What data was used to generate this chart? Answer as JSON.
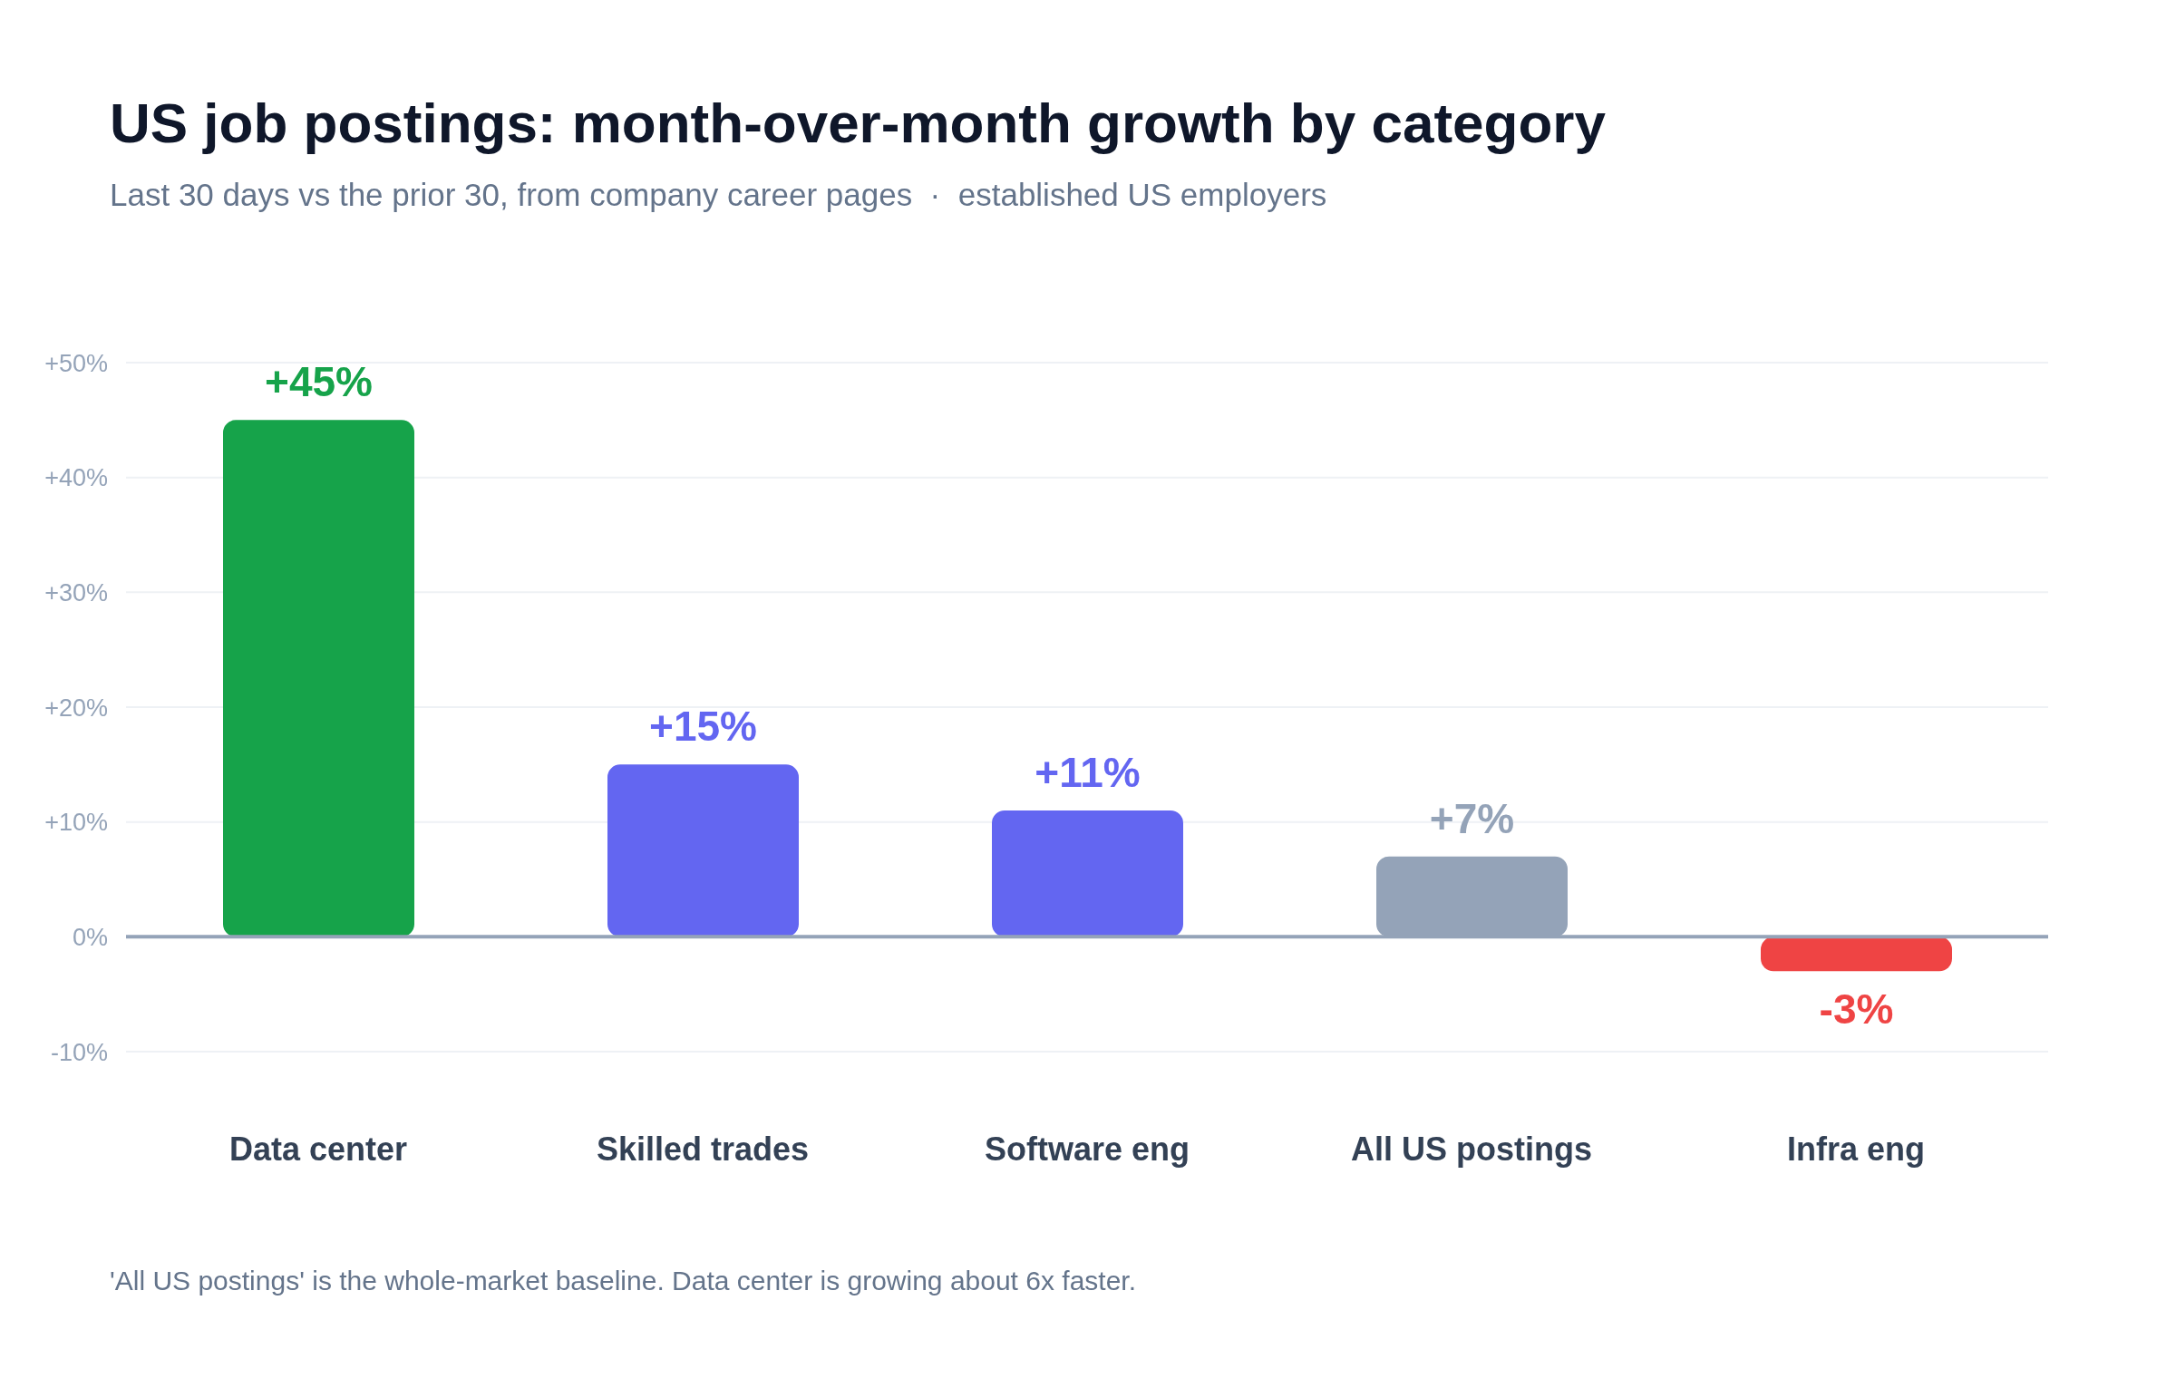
{
  "chart_data": {
    "type": "bar",
    "title": "US job postings: month-over-month growth by category",
    "subtitle": "Last 30 days vs the prior 30, from company career pages  ·  established US employers",
    "categories": [
      "Data center",
      "Skilled trades",
      "Software eng",
      "All US postings",
      "Infra eng"
    ],
    "values": [
      45,
      15,
      11,
      7,
      -3
    ],
    "colors": [
      "#16a34a",
      "#6366f1",
      "#6366f1",
      "#94a3b8",
      "#ef4444"
    ],
    "value_labels": [
      "+45%",
      "+15%",
      "+11%",
      "+7%",
      "-3%"
    ],
    "ylim": [
      -10,
      50
    ],
    "yticks": [
      {
        "value": -10,
        "label": "-10%"
      },
      {
        "value": 0,
        "label": "0%"
      },
      {
        "value": 10,
        "label": "+10%"
      },
      {
        "value": 20,
        "label": "+20%"
      },
      {
        "value": 30,
        "label": "+30%"
      },
      {
        "value": 40,
        "label": "+40%"
      },
      {
        "value": 50,
        "label": "+50%"
      }
    ],
    "grid": "y",
    "ref_lines": [
      {
        "axis": "y",
        "value": 0,
        "color": "#94a3b8"
      }
    ],
    "annotations": [
      "'All US postings' is the whole-market baseline. Data center is growing about 6x faster."
    ]
  }
}
